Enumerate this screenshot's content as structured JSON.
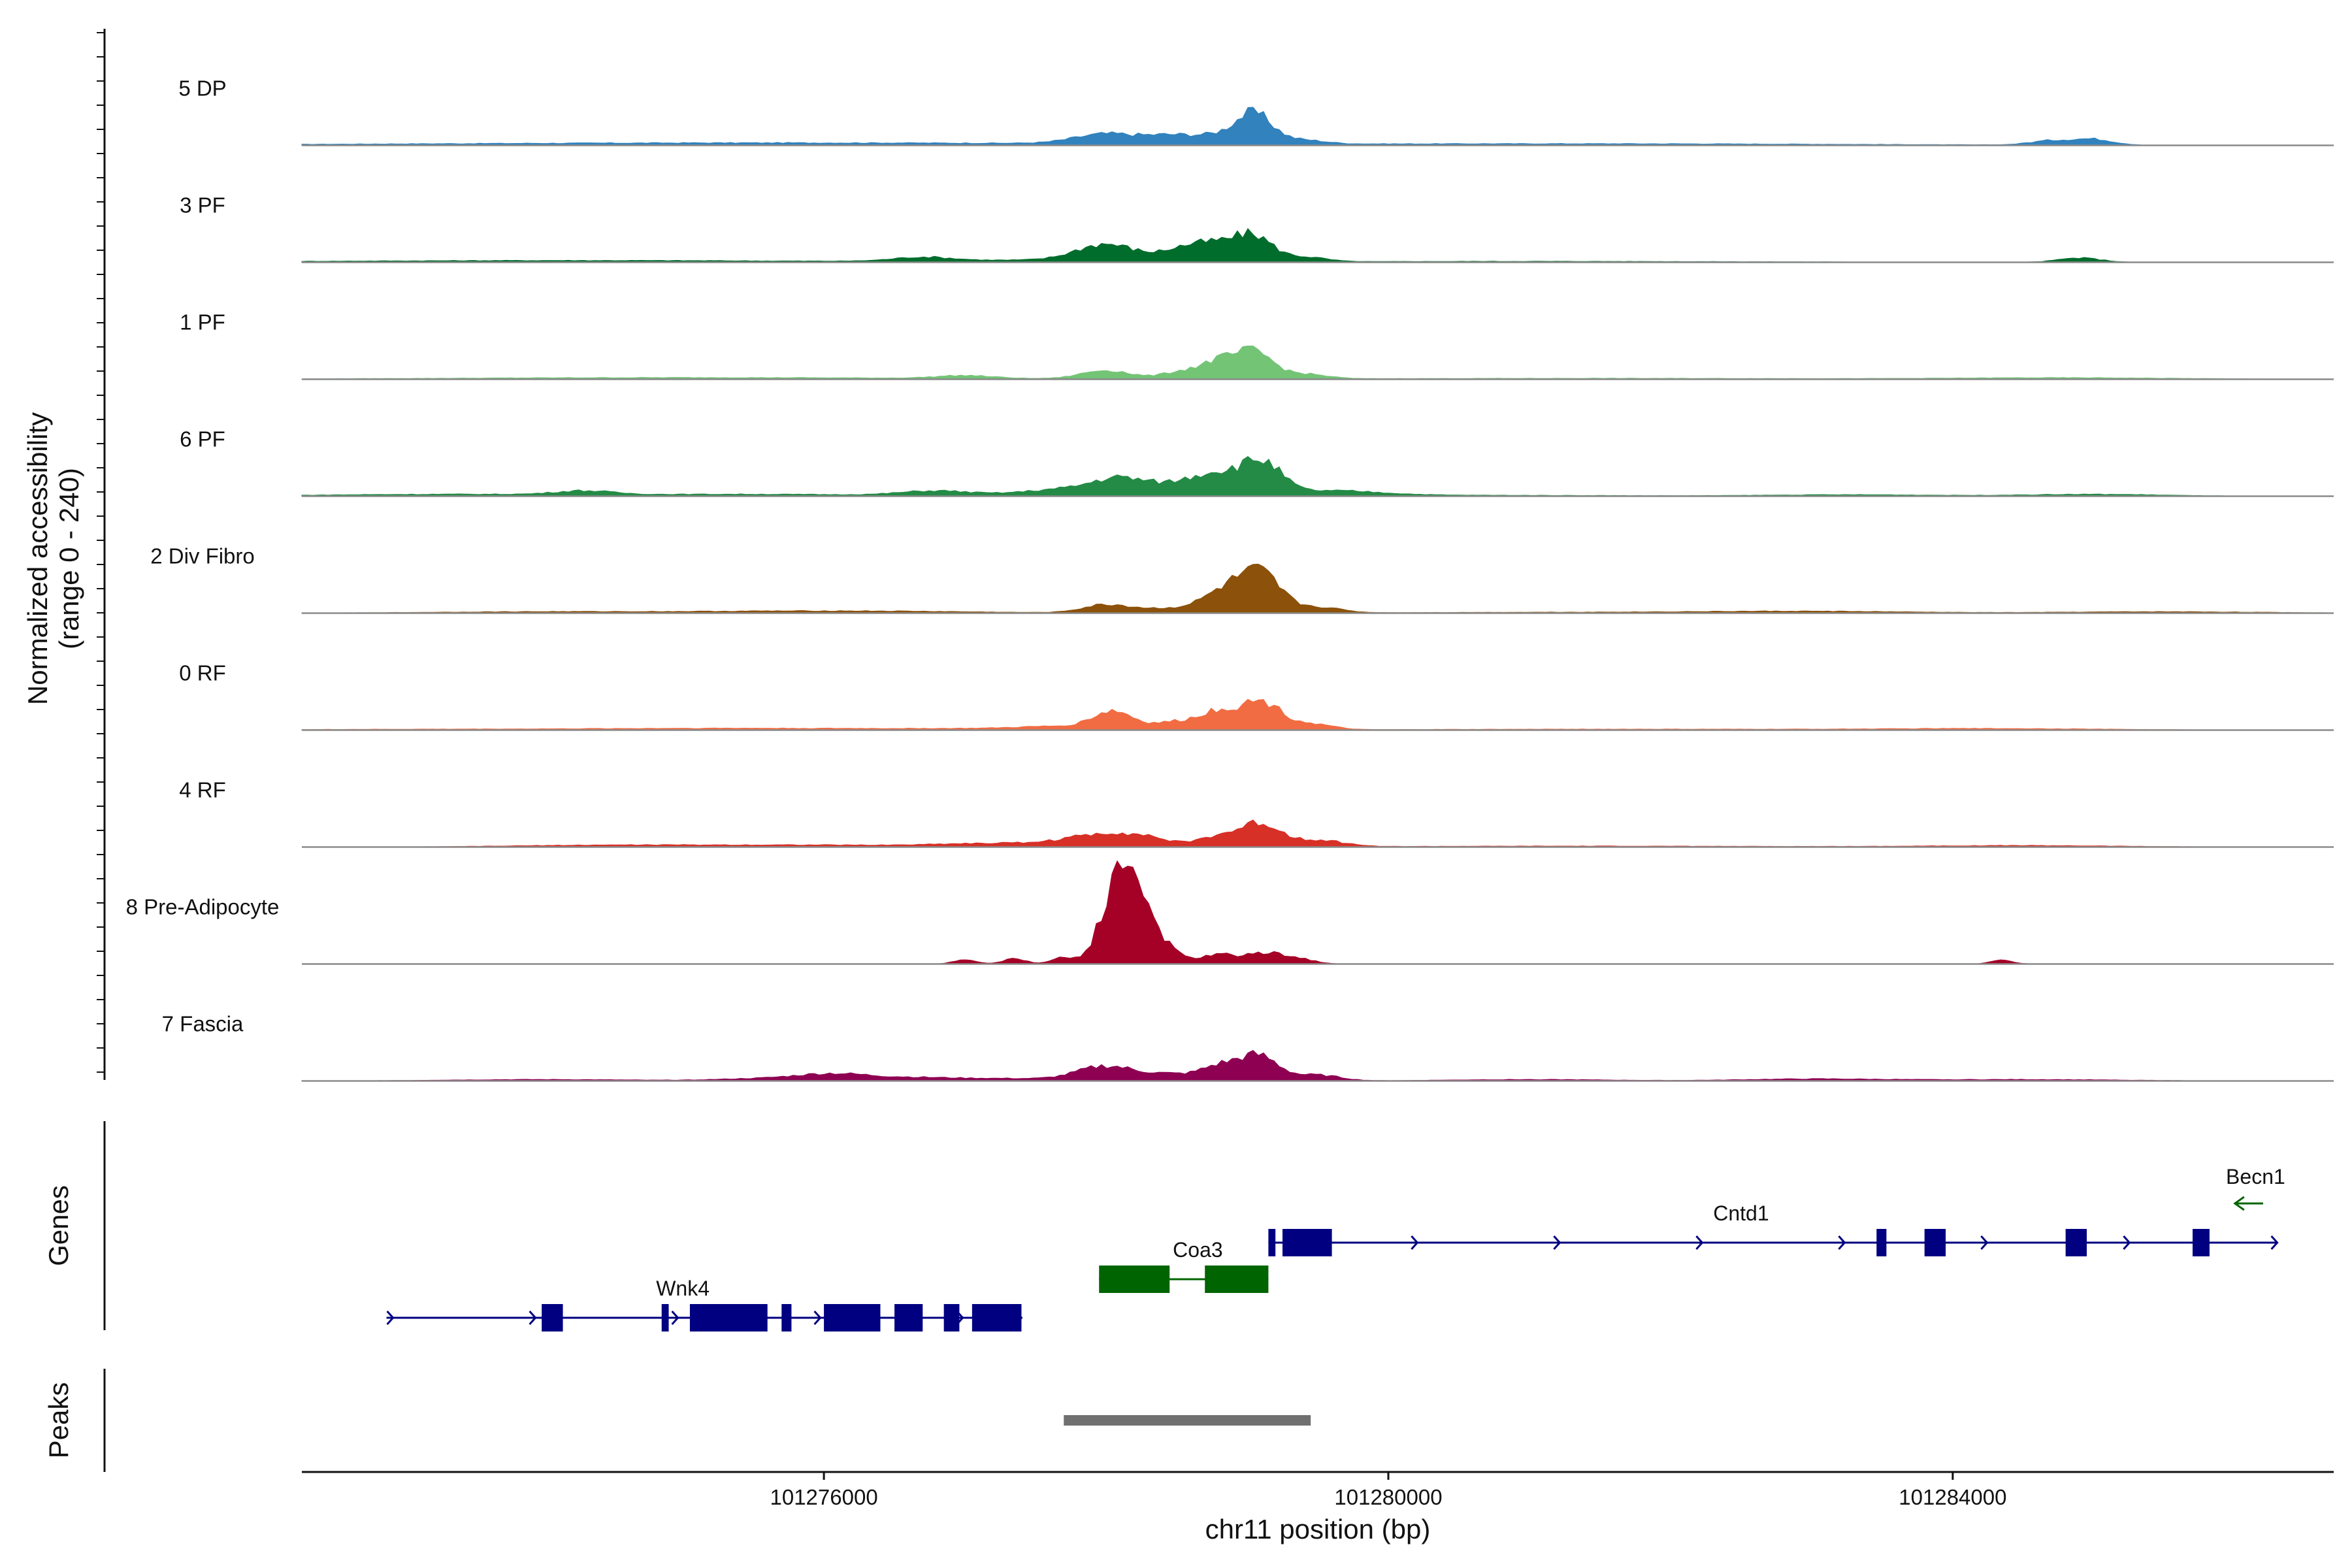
{
  "chart_data": {
    "type": "area",
    "title": "",
    "ylabel_line1": "Normalized accessibility",
    "ylabel_line2": "(range 0 - 240)",
    "ylim": [
      0,
      240
    ],
    "xlabel": "chr11 position (bp)",
    "xlim": [
      101272300,
      101286700
    ],
    "xticks": [
      101276000,
      101280000,
      101284000
    ],
    "xtick_labels": [
      "101276000",
      "101280000",
      "101284000"
    ],
    "genes_label": "Genes",
    "peaks_label": "Peaks",
    "tracks": [
      {
        "name": "5 DP",
        "color": "#3182BD",
        "peaks": [
          [
            101273300,
            2,
            1600
          ],
          [
            101275200,
            3,
            1600
          ],
          [
            101277300,
            3,
            1600
          ],
          [
            101278000,
            20,
            220
          ],
          [
            101278450,
            15,
            180
          ],
          [
            101278800,
            15,
            180
          ],
          [
            101279050,
            60,
            130
          ],
          [
            101279400,
            8,
            150
          ],
          [
            101280600,
            2,
            1600
          ],
          [
            101282400,
            2,
            1600
          ],
          [
            101284700,
            9,
            150
          ],
          [
            101285000,
            12,
            140
          ]
        ]
      },
      {
        "name": "3 PF",
        "color": "#006D2C",
        "peaks": [
          [
            101273000,
            2,
            1200
          ],
          [
            101274900,
            3,
            1300
          ],
          [
            101276700,
            8,
            200
          ],
          [
            101277500,
            4,
            700
          ],
          [
            101278000,
            35,
            210
          ],
          [
            101278550,
            25,
            160
          ],
          [
            101278800,
            30,
            150
          ],
          [
            101279050,
            50,
            130
          ],
          [
            101279400,
            10,
            150
          ],
          [
            101281000,
            2,
            1600
          ],
          [
            101284900,
            9,
            150
          ]
        ]
      },
      {
        "name": "1 PF",
        "color": "#74C476",
        "peaks": [
          [
            101274400,
            2,
            1500
          ],
          [
            101275800,
            2,
            1600
          ],
          [
            101277000,
            6,
            200
          ],
          [
            101278000,
            18,
            170
          ],
          [
            101278550,
            16,
            140
          ],
          [
            101278800,
            32,
            120
          ],
          [
            101279050,
            55,
            130
          ],
          [
            101279400,
            10,
            160
          ],
          [
            101281500,
            2,
            1600
          ],
          [
            101284800,
            3,
            800
          ]
        ]
      },
      {
        "name": "6 PF",
        "color": "#238B45",
        "peaks": [
          [
            101273300,
            4,
            900
          ],
          [
            101274300,
            8,
            200
          ],
          [
            101275500,
            4,
            900
          ],
          [
            101276800,
            10,
            250
          ],
          [
            101277700,
            14,
            300
          ],
          [
            101278100,
            32,
            190
          ],
          [
            101278550,
            25,
            200
          ],
          [
            101278800,
            35,
            150
          ],
          [
            101279100,
            68,
            140
          ],
          [
            101279600,
            10,
            350
          ],
          [
            101280500,
            2,
            1200
          ],
          [
            101283300,
            3,
            600
          ],
          [
            101285000,
            4,
            500
          ]
        ]
      },
      {
        "name": "2 Div Fibro",
        "color": "#8C510A",
        "peaks": [
          [
            101274000,
            3,
            800
          ],
          [
            101275600,
            3,
            700
          ],
          [
            101276600,
            3,
            700
          ],
          [
            101278000,
            16,
            170
          ],
          [
            101278500,
            10,
            250
          ],
          [
            101278850,
            42,
            150
          ],
          [
            101279100,
            75,
            140
          ],
          [
            101279500,
            12,
            160
          ],
          [
            101281500,
            2,
            1400
          ],
          [
            101283000,
            3,
            700
          ],
          [
            101285500,
            3,
            700
          ]
        ]
      },
      {
        "name": "0 RF",
        "color": "#F16C42",
        "peaks": [
          [
            101273500,
            2,
            1200
          ],
          [
            101275300,
            3,
            800
          ],
          [
            101277000,
            3,
            800
          ],
          [
            101277700,
            6,
            300
          ],
          [
            101278050,
            36,
            140
          ],
          [
            101278500,
            16,
            160
          ],
          [
            101278800,
            36,
            130
          ],
          [
            101279100,
            58,
            140
          ],
          [
            101279450,
            12,
            150
          ],
          [
            101281600,
            2,
            1500
          ],
          [
            101284300,
            3,
            800
          ]
        ]
      },
      {
        "name": "4 RF",
        "color": "#D73027",
        "peaks": [
          [
            101274500,
            4,
            700
          ],
          [
            101276000,
            4,
            700
          ],
          [
            101277000,
            5,
            300
          ],
          [
            101277600,
            8,
            300
          ],
          [
            101278000,
            24,
            220
          ],
          [
            101278300,
            14,
            160
          ],
          [
            101278800,
            22,
            150
          ],
          [
            101279100,
            46,
            140
          ],
          [
            101279500,
            14,
            180
          ],
          [
            101281400,
            2,
            1400
          ],
          [
            101284500,
            3,
            700
          ]
        ]
      },
      {
        "name": "8 Pre-Adipocyte",
        "color": "#A50026",
        "peaks": [
          [
            101277000,
            9,
            80
          ],
          [
            101277350,
            11,
            80
          ],
          [
            101277700,
            13,
            90
          ],
          [
            101278000,
            55,
            90
          ],
          [
            101278150,
            175,
            120
          ],
          [
            101278300,
            45,
            120
          ],
          [
            101278500,
            13,
            140
          ],
          [
            101278800,
            16,
            100
          ],
          [
            101279100,
            22,
            150
          ],
          [
            101279350,
            10,
            120
          ],
          [
            101284350,
            8,
            80
          ]
        ]
      },
      {
        "name": "7 Fascia",
        "color": "#8E0152",
        "peaks": [
          [
            101274000,
            3,
            700
          ],
          [
            101275500,
            4,
            300
          ],
          [
            101276050,
            14,
            260
          ],
          [
            101276600,
            6,
            300
          ],
          [
            101277300,
            5,
            400
          ],
          [
            101278000,
            30,
            200
          ],
          [
            101278450,
            13,
            180
          ],
          [
            101278800,
            28,
            130
          ],
          [
            101279080,
            52,
            140
          ],
          [
            101279500,
            12,
            160
          ],
          [
            101281000,
            3,
            600
          ],
          [
            101283000,
            4,
            500
          ],
          [
            101284500,
            3,
            700
          ]
        ]
      }
    ],
    "genes": [
      {
        "name": "Wnk4",
        "color": "#000080",
        "row": 2,
        "start": 101272900,
        "end": 101277400,
        "strand": "+",
        "label_pos": 101275000,
        "exons": [
          [
            101274000,
            101274150
          ],
          [
            101274850,
            101274900
          ],
          [
            101275050,
            101275600
          ],
          [
            101275700,
            101275770
          ],
          [
            101276000,
            101276400
          ],
          [
            101276500,
            101276700
          ],
          [
            101276850,
            101276960
          ],
          [
            101277050,
            101277400
          ]
        ]
      },
      {
        "name": "Coa3",
        "color": "#006400",
        "row": 1,
        "start": 101277950,
        "end": 101279150,
        "strand": "none",
        "label_pos": 101278650,
        "exons": [
          [
            101277950,
            101278450
          ],
          [
            101278700,
            101279150
          ]
        ]
      },
      {
        "name": "Cntd1",
        "color": "#000080",
        "row": 0,
        "start": 101279150,
        "end": 101286300,
        "strand": "+",
        "label_pos": 101282500,
        "exons": [
          [
            101279150,
            101279200
          ],
          [
            101279250,
            101279600
          ],
          [
            101283460,
            101283530
          ],
          [
            101283800,
            101283950
          ],
          [
            101284800,
            101284950
          ],
          [
            101285700,
            101285820
          ]
        ]
      },
      {
        "name": "Becn1",
        "color": "#006400",
        "row": -1,
        "start": 101286000,
        "end": 101286200,
        "strand": "-",
        "label_pos": 101286300,
        "exons": []
      }
    ],
    "peak_regions": [
      [
        101277700,
        101279450
      ]
    ]
  }
}
